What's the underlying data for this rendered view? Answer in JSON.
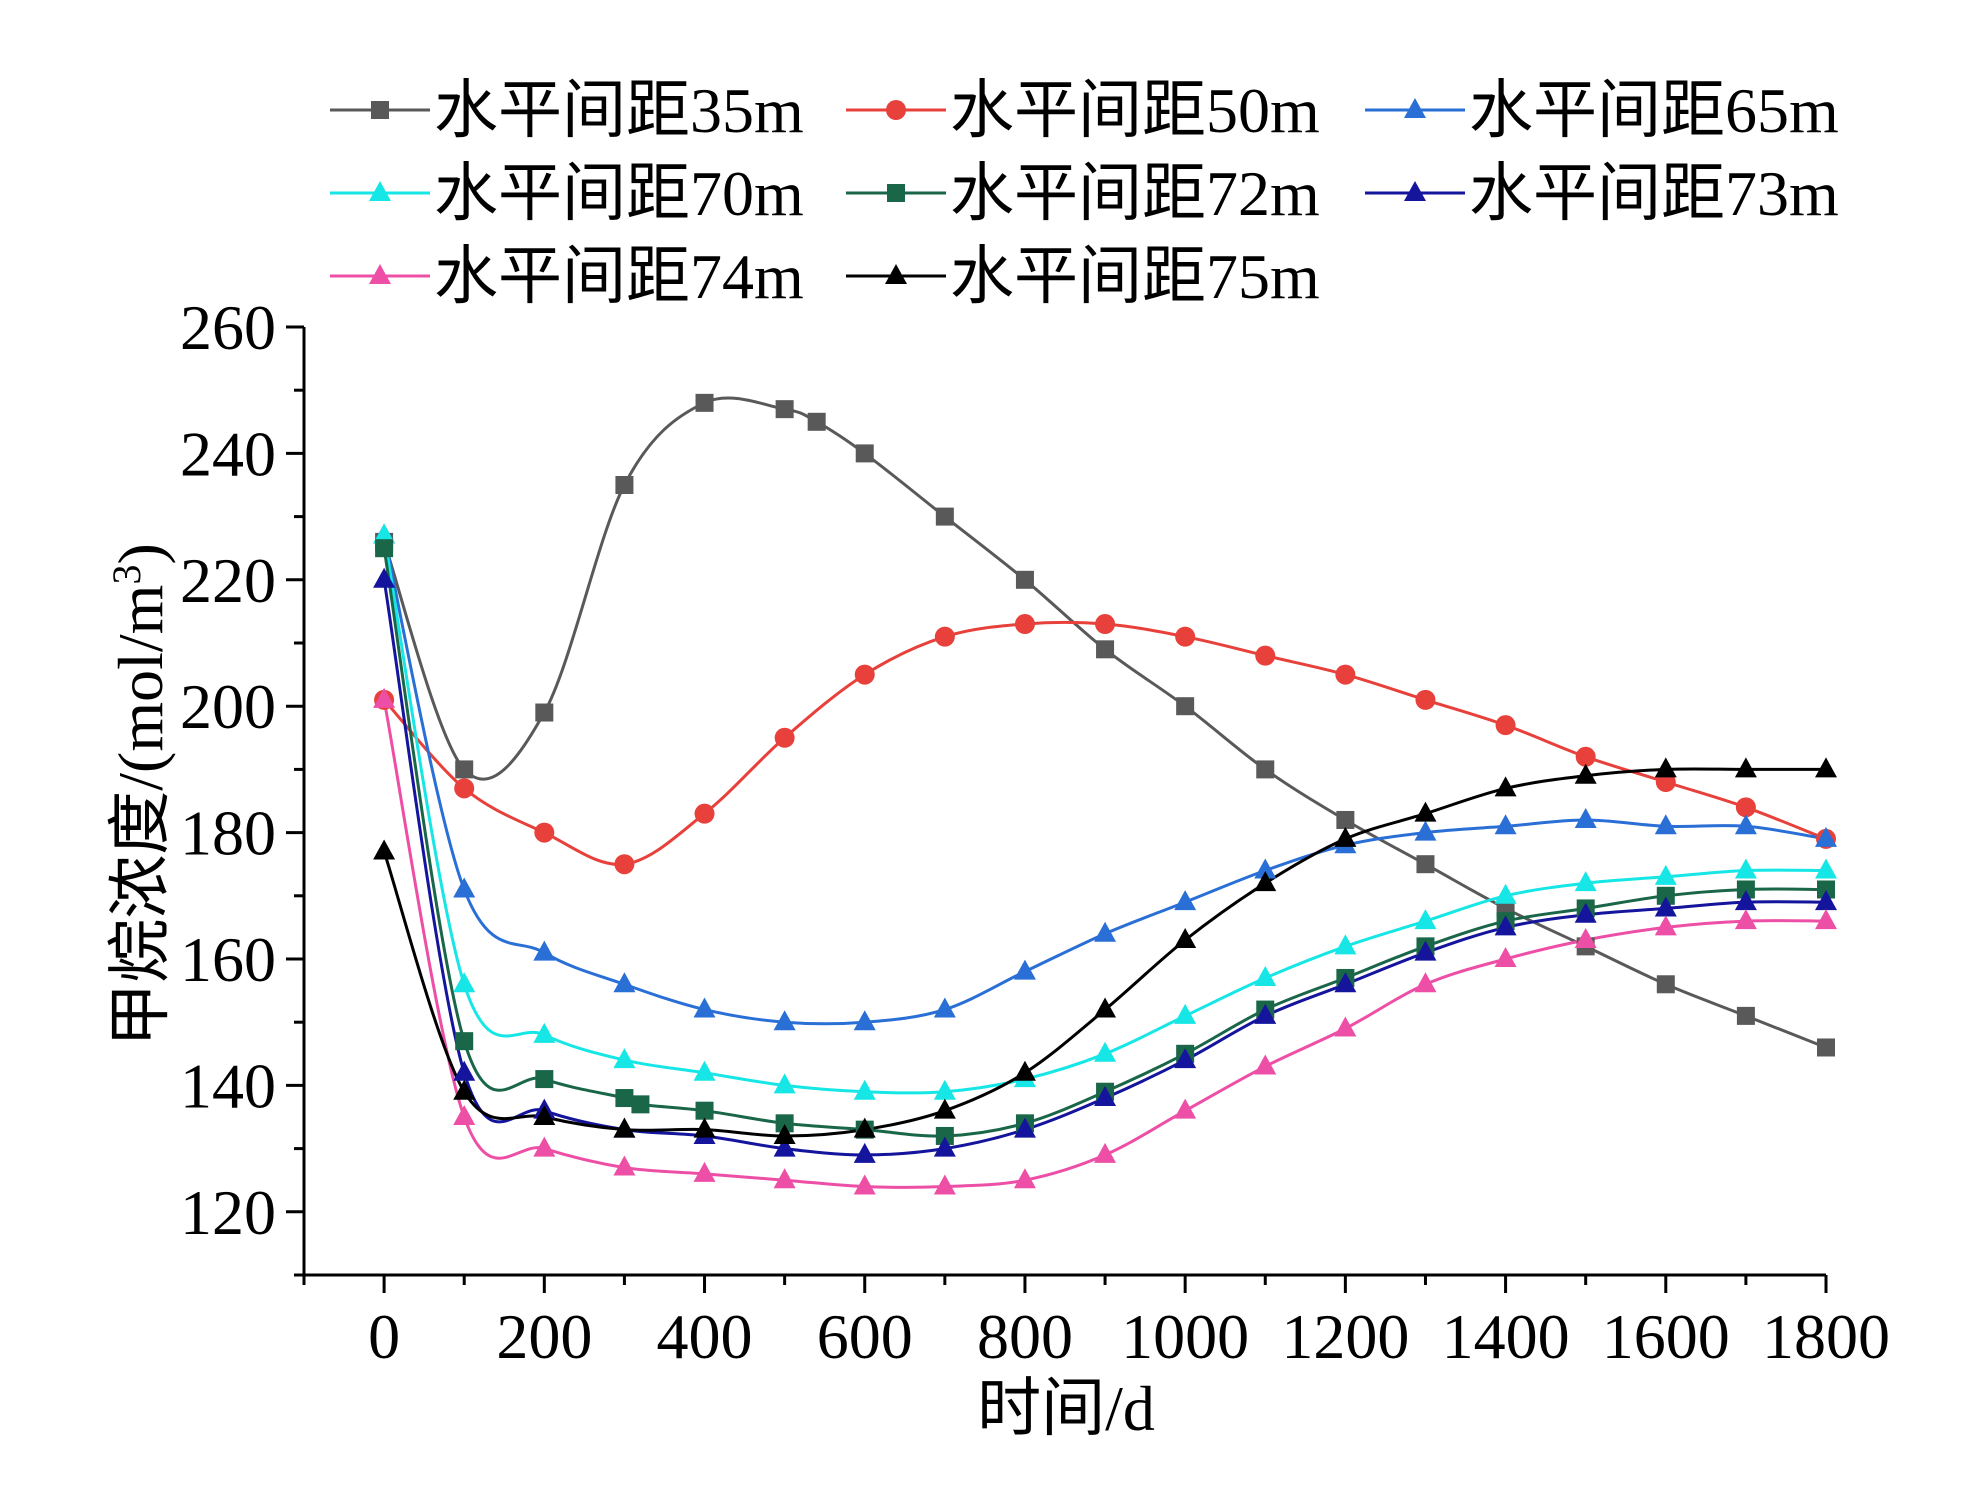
{
  "chart_data": {
    "type": "line",
    "title": "",
    "xlabel": "时间/d",
    "ylabel": "甲烷浓度/(mol/m",
    "ylabel_sup": "3",
    "ylabel_end": ")",
    "xlim": [
      -100,
      1800
    ],
    "ylim": [
      110,
      260
    ],
    "xticks": [
      0,
      200,
      400,
      600,
      800,
      1000,
      1200,
      1400,
      1600,
      1800
    ],
    "yticks": [
      120,
      140,
      160,
      180,
      200,
      220,
      240,
      260
    ],
    "xtick_labels": [
      "0",
      "200",
      "400",
      "600",
      "800",
      "1000",
      "1200",
      "1400",
      "1600",
      "1800"
    ],
    "ytick_labels": [
      "120",
      "140",
      "160",
      "180",
      "200",
      "220",
      "240",
      "260"
    ],
    "legend_position": "top",
    "series": [
      {
        "name": "水平间距35m",
        "color": "#595959",
        "marker": "square",
        "x": [
          0,
          100,
          200,
          300,
          400,
          500,
          540,
          600,
          700,
          800,
          900,
          1000,
          1100,
          1200,
          1300,
          1400,
          1500,
          1600,
          1700,
          1800
        ],
        "y": [
          226,
          190,
          199,
          235,
          248,
          247,
          245,
          240,
          230,
          220,
          209,
          200,
          190,
          182,
          175,
          168,
          162,
          156,
          151,
          146
        ]
      },
      {
        "name": "水平间距50m",
        "color": "#e8403a",
        "marker": "circle",
        "x": [
          0,
          100,
          200,
          300,
          400,
          500,
          600,
          700,
          800,
          900,
          1000,
          1100,
          1200,
          1300,
          1400,
          1500,
          1600,
          1700,
          1800
        ],
        "y": [
          201,
          187,
          180,
          175,
          183,
          195,
          205,
          211,
          213,
          213,
          211,
          208,
          205,
          201,
          197,
          192,
          188,
          184,
          179
        ]
      },
      {
        "name": "水平间距65m",
        "color": "#2a6fd6",
        "marker": "triangle",
        "x": [
          0,
          100,
          200,
          300,
          400,
          500,
          600,
          700,
          800,
          900,
          1000,
          1100,
          1200,
          1300,
          1400,
          1500,
          1600,
          1700,
          1800
        ],
        "y": [
          227,
          171,
          161,
          156,
          152,
          150,
          150,
          152,
          158,
          164,
          169,
          174,
          178,
          180,
          181,
          182,
          181,
          181,
          179
        ]
      },
      {
        "name": "水平间距70m",
        "color": "#17e6e6",
        "marker": "triangle",
        "x": [
          0,
          100,
          200,
          300,
          400,
          500,
          600,
          700,
          800,
          900,
          1000,
          1100,
          1200,
          1300,
          1400,
          1500,
          1600,
          1700,
          1800
        ],
        "y": [
          227,
          156,
          148,
          144,
          142,
          140,
          139,
          139,
          141,
          145,
          151,
          157,
          162,
          166,
          170,
          172,
          173,
          174,
          174
        ]
      },
      {
        "name": "水平间距72m",
        "color": "#1a6648",
        "marker": "square",
        "x": [
          0,
          100,
          200,
          300,
          320,
          400,
          500,
          600,
          700,
          800,
          900,
          1000,
          1100,
          1200,
          1300,
          1400,
          1500,
          1600,
          1700,
          1800
        ],
        "y": [
          225,
          147,
          141,
          138,
          137,
          136,
          134,
          133,
          132,
          134,
          139,
          145,
          152,
          157,
          162,
          166,
          168,
          170,
          171,
          171
        ]
      },
      {
        "name": "水平间距73m",
        "color": "#14149c",
        "marker": "triangle",
        "x": [
          0,
          100,
          200,
          300,
          400,
          500,
          600,
          700,
          800,
          900,
          1000,
          1100,
          1200,
          1300,
          1400,
          1500,
          1600,
          1700,
          1800
        ],
        "y": [
          220,
          142,
          136,
          133,
          132,
          130,
          129,
          130,
          133,
          138,
          144,
          151,
          156,
          161,
          165,
          167,
          168,
          169,
          169
        ]
      },
      {
        "name": "水平间距74m",
        "color": "#ee4fa6",
        "marker": "triangle",
        "x": [
          0,
          100,
          200,
          300,
          400,
          500,
          600,
          700,
          800,
          900,
          1000,
          1100,
          1200,
          1300,
          1400,
          1500,
          1600,
          1700,
          1800
        ],
        "y": [
          201,
          135,
          130,
          127,
          126,
          125,
          124,
          124,
          125,
          129,
          136,
          143,
          149,
          156,
          160,
          163,
          165,
          166,
          166
        ]
      },
      {
        "name": "水平间距75m",
        "color": "#000000",
        "marker": "triangle",
        "x": [
          0,
          100,
          200,
          300,
          400,
          500,
          600,
          700,
          800,
          900,
          1000,
          1100,
          1200,
          1300,
          1400,
          1500,
          1600,
          1700,
          1800
        ],
        "y": [
          177,
          139,
          135,
          133,
          133,
          132,
          133,
          136,
          142,
          152,
          163,
          172,
          179,
          183,
          187,
          189,
          190,
          190,
          190
        ]
      }
    ]
  }
}
